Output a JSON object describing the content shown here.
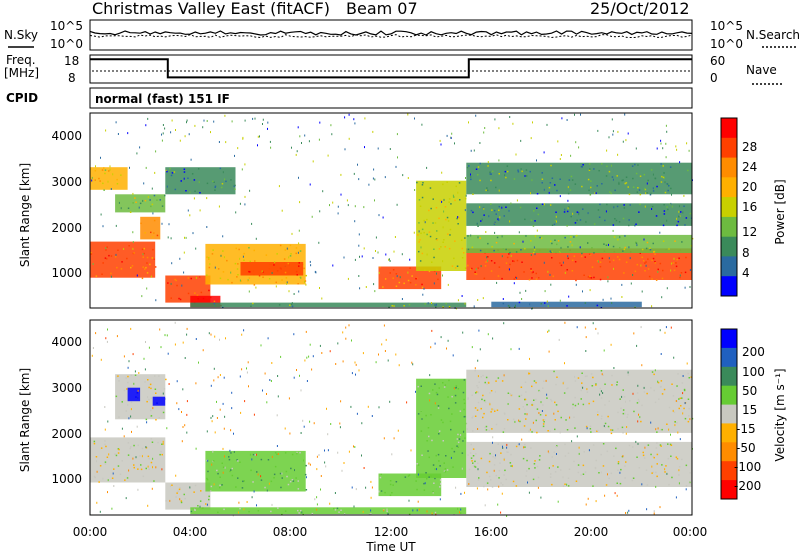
{
  "header": {
    "station": "Christmas Valley East (fitACF)",
    "beam": "Beam 07",
    "date": "25/Oct/2012"
  },
  "noise_panel": {
    "left_label": "N.Sky",
    "left_ticks": [
      "10^5",
      "10^0"
    ],
    "right_ticks": [
      "10^5",
      "10^0"
    ],
    "right_label": "N.Search"
  },
  "freq_panel": {
    "left_label": "Freq.",
    "left_unit": "[MHz]",
    "left_ticks": [
      "18",
      "8"
    ],
    "right_ticks": [
      "60",
      "0"
    ],
    "right_label": "Nave",
    "freq_steps": [
      {
        "t0": 0,
        "t1": 3.1,
        "freq": 16.5
      },
      {
        "t0": 3.1,
        "t1": 15.1,
        "freq": 10.0
      },
      {
        "t0": 15.1,
        "t1": 24,
        "freq": 16.5
      }
    ]
  },
  "cpid": {
    "label": "CPID",
    "value": "normal (fast) 151 IF"
  },
  "power_panel": {
    "ylabel": "Slant Range [km]",
    "yticks": [
      "4000",
      "3000",
      "2000",
      "1000"
    ]
  },
  "velocity_panel": {
    "ylabel": "Slant Range [km]",
    "yticks": [
      "4000",
      "3000",
      "2000",
      "1000"
    ]
  },
  "xaxis": {
    "ticks": [
      "00:00",
      "04:00",
      "08:00",
      "12:00",
      "16:00",
      "20:00",
      "00:00"
    ],
    "label": "Time UT"
  },
  "power_colorbar": {
    "label": "Power [dB]",
    "ticks": [
      "28",
      "24",
      "20",
      "16",
      "12",
      "8",
      "4"
    ],
    "colors": [
      "#ff0000",
      "#ff4000",
      "#ff8c00",
      "#ffb000",
      "#c8d000",
      "#6dbb40",
      "#3a8a5a",
      "#2a6aa0",
      "#0000ff"
    ]
  },
  "velocity_colorbar": {
    "label": "Velocity [m s⁻¹]",
    "ticks": [
      "200",
      "100",
      "50",
      "15",
      "-15",
      "-50",
      "-100",
      "-200"
    ],
    "colors": [
      "#0000ff",
      "#2060c0",
      "#3a8a5a",
      "#66cc33",
      "#c8c8c0",
      "#ffb000",
      "#ff8c00",
      "#ff4000",
      "#ff0000"
    ]
  },
  "chart_data": {
    "type": "heatmap",
    "title": "Christmas Valley East (fitACF)",
    "xlabel": "Time UT",
    "ylabel": "Slant Range [km]",
    "xlim": [
      0,
      24
    ],
    "ylim": [
      180,
      4500
    ],
    "power_regions": [
      {
        "t0": 0.0,
        "t1": 2.6,
        "r0": 850,
        "r1": 1650,
        "p": 24
      },
      {
        "t0": 2.0,
        "t1": 2.8,
        "r0": 1700,
        "r1": 2200,
        "p": 20
      },
      {
        "t0": 0.0,
        "t1": 1.5,
        "r0": 2800,
        "r1": 3300,
        "p": 16
      },
      {
        "t0": 1.0,
        "t1": 3.0,
        "r0": 2300,
        "r1": 2700,
        "p": 12
      },
      {
        "t0": 3.0,
        "t1": 4.8,
        "r0": 300,
        "r1": 900,
        "p": 26
      },
      {
        "t0": 4.0,
        "t1": 5.2,
        "r0": 200,
        "r1": 450,
        "p": 28
      },
      {
        "t0": 3.0,
        "t1": 5.8,
        "r0": 2700,
        "r1": 3300,
        "p": 8
      },
      {
        "t0": 4.6,
        "t1": 8.6,
        "r0": 700,
        "r1": 1600,
        "p": 18
      },
      {
        "t0": 6.0,
        "t1": 8.5,
        "r0": 900,
        "r1": 1200,
        "p": 26
      },
      {
        "t0": 4.0,
        "t1": 15.0,
        "r0": 200,
        "r1": 300,
        "p": 10
      },
      {
        "t0": 11.5,
        "t1": 14.0,
        "r0": 600,
        "r1": 1100,
        "p": 24
      },
      {
        "t0": 13.0,
        "t1": 15.0,
        "r0": 1000,
        "r1": 3000,
        "p": 14
      },
      {
        "t0": 15.0,
        "t1": 24.0,
        "r0": 800,
        "r1": 1500,
        "p": 26
      },
      {
        "t0": 15.0,
        "t1": 24.0,
        "r0": 1400,
        "r1": 1800,
        "p": 12
      },
      {
        "t0": 15.0,
        "t1": 24.0,
        "r0": 2000,
        "r1": 2500,
        "p": 8
      },
      {
        "t0": 15.0,
        "t1": 24.0,
        "r0": 2700,
        "r1": 3400,
        "p": 10
      },
      {
        "t0": 16.0,
        "t1": 22.0,
        "r0": 200,
        "r1": 320,
        "p": 6
      }
    ],
    "velocity_regions": [
      {
        "t0": 0.0,
        "t1": 3.0,
        "r0": 900,
        "r1": 1900,
        "v": 0
      },
      {
        "t0": 1.0,
        "t1": 3.0,
        "r0": 2300,
        "r1": 3300,
        "v": 0
      },
      {
        "t0": 1.5,
        "t1": 2.0,
        "r0": 2700,
        "r1": 3000,
        "v": 210
      },
      {
        "t0": 2.5,
        "t1": 3.0,
        "r0": 2600,
        "r1": 2800,
        "v": 210
      },
      {
        "t0": 3.0,
        "t1": 4.8,
        "r0": 300,
        "r1": 900,
        "v": 0
      },
      {
        "t0": 4.6,
        "t1": 8.6,
        "r0": 700,
        "r1": 1600,
        "v": 30
      },
      {
        "t0": 4.0,
        "t1": 15.0,
        "r0": 200,
        "r1": 350,
        "v": 20
      },
      {
        "t0": 11.5,
        "t1": 14.0,
        "r0": 600,
        "r1": 1100,
        "v": 30
      },
      {
        "t0": 13.0,
        "t1": 15.0,
        "r0": 1000,
        "r1": 3200,
        "v": 30
      },
      {
        "t0": 15.0,
        "t1": 24.0,
        "r0": 800,
        "r1": 1800,
        "v": 0
      },
      {
        "t0": 15.0,
        "t1": 24.0,
        "r0": 2000,
        "r1": 3400,
        "v": 0
      }
    ]
  }
}
